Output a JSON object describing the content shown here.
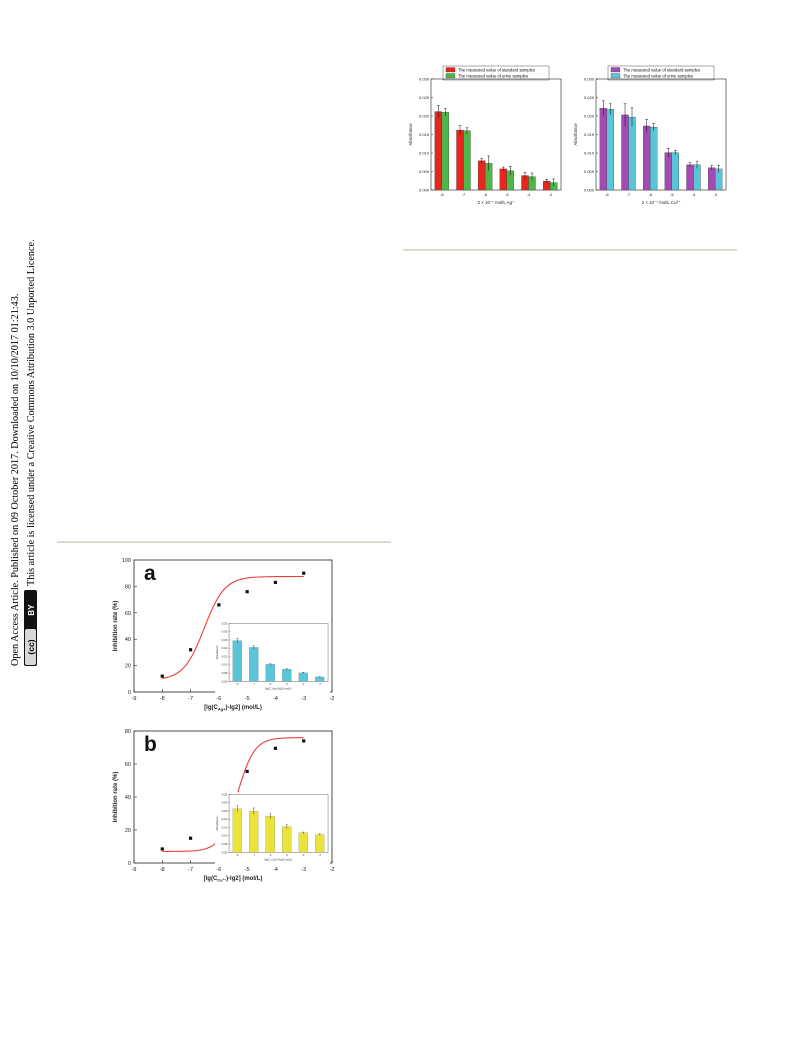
{
  "watermark": {
    "line1": "Open Access Article. Published on 09 October 2017. Downloaded on 10/10/2017 01:21:43.",
    "line2": "This article is licensed under a Creative Commons Attribution 3.0 Unported Licence.",
    "cc_badge": "cc BY"
  },
  "colors": {
    "red": "#e8261e",
    "green": "#4cb848",
    "purple": "#a54ab4",
    "cyan": "#5ac4d8",
    "yellow": "#eae33a",
    "curve": "#e8403a",
    "rule": "#dcdccc"
  },
  "chart_data": [
    {
      "id": "top-left",
      "type": "bar",
      "legend": [
        "The measured value of standard samples",
        "The measured value of urine samples"
      ],
      "legend_position": "top",
      "categories": [
        "-8",
        "-7",
        "-6",
        "-5",
        "-4",
        "-3"
      ],
      "series": [
        {
          "name": "The measured value of standard samples",
          "color": "red",
          "values": [
            0.0212,
            0.0162,
            0.0079,
            0.0057,
            0.0039,
            0.0024
          ],
          "err": [
            0.0017,
            0.0012,
            0.0006,
            0.0005,
            0.0009,
            0.0005
          ]
        },
        {
          "name": "The measured value of urine samples",
          "color": "green",
          "values": [
            0.021,
            0.016,
            0.0072,
            0.0052,
            0.0036,
            0.002
          ],
          "err": [
            0.001,
            0.0008,
            0.002,
            0.0012,
            0.001,
            0.001
          ]
        }
      ],
      "ylim": [
        0,
        0.03
      ],
      "yticks": [
        "0.000",
        "0.005",
        "0.010",
        "0.015",
        "0.020",
        "0.025",
        "0.030"
      ],
      "ylabel": "Absorbance",
      "xlabel": "2 × 10⁻⁷ mol/L Ag⁺"
    },
    {
      "id": "top-right",
      "type": "bar",
      "legend": [
        "The measured value of standard samples",
        "The measured value of urine samples"
      ],
      "legend_position": "top",
      "categories": [
        "-8",
        "-7",
        "-6",
        "-5",
        "-4",
        "-3"
      ],
      "series": [
        {
          "name": "The measured value of standard samples",
          "color": "purple",
          "values": [
            0.0221,
            0.0203,
            0.0173,
            0.0101,
            0.0068,
            0.006
          ],
          "err": [
            0.002,
            0.003,
            0.0018,
            0.0012,
            0.0006,
            0.0006
          ]
        },
        {
          "name": "The measured value of urine samples",
          "color": "cyan",
          "values": [
            0.0218,
            0.0197,
            0.017,
            0.0101,
            0.0068,
            0.0057
          ],
          "err": [
            0.0015,
            0.0025,
            0.001,
            0.0006,
            0.001,
            0.001
          ]
        }
      ],
      "ylim": [
        0,
        0.03
      ],
      "yticks": [
        "0.000",
        "0.005",
        "0.010",
        "0.015",
        "0.020",
        "0.025",
        "0.030"
      ],
      "ylabel": "Absorbance",
      "xlabel": "2 × 10⁻⁷ mol/L Cu²⁺"
    },
    {
      "id": "a",
      "panel_label": "a",
      "type": "scatter",
      "x": [
        -8,
        -7,
        -6,
        -5,
        -4,
        -3
      ],
      "y": [
        12,
        32,
        66,
        76,
        83,
        90
      ],
      "fit_curve": {
        "type": "sigmoid",
        "color": "curve",
        "bottom": 9,
        "top": 87.5,
        "x50": -6.52,
        "slope": 1.2
      },
      "xlim": [
        -9,
        -2
      ],
      "ylim": [
        0,
        100
      ],
      "xticks": [
        "-9",
        "-8",
        "-7",
        "-6",
        "-5",
        "-4",
        "-3",
        "-2"
      ],
      "yticks": [
        "0",
        "20",
        "40",
        "60",
        "80",
        "100"
      ],
      "ylabel": "Inhibition rate (%)",
      "xlabel": "[lg(C",
      "xlabel_sub": "Ag+",
      "xlabel_tail": ")-lg2] (mol/L)",
      "inset": {
        "type": "bar",
        "color": "cyan",
        "values": [
          0.0246,
          0.0205,
          0.0103,
          0.0074,
          0.0052,
          0.0027
        ],
        "err": [
          0.0012,
          0.001,
          0.0005,
          0.0003,
          0.0003,
          0.0003
        ],
        "ylim": [
          0,
          0.035
        ],
        "yticks": [
          "0.000",
          "0.005",
          "0.010",
          "0.015",
          "0.020",
          "0.025",
          "0.030",
          "0.035"
        ],
        "categories": [
          "-8",
          "-7",
          "-6",
          "-5",
          "-4",
          "-3"
        ],
        "ylabel": "Absorbance",
        "xlabel": "[lg(C_Ag+)-lg2] (mol/L)"
      }
    },
    {
      "id": "b",
      "panel_label": "b",
      "type": "scatter",
      "x": [
        -8,
        -7,
        -6,
        -5,
        -4,
        -3
      ],
      "y": [
        8.5,
        15,
        28,
        55.5,
        69.5,
        74
      ],
      "fit_curve": {
        "type": "sigmoid",
        "color": "curve",
        "bottom": 7,
        "top": 76,
        "x50": -5.35,
        "slope": 1.45
      },
      "xlim": [
        -9,
        -2
      ],
      "ylim": [
        0,
        80
      ],
      "xticks": [
        "-9",
        "-8",
        "-7",
        "-6",
        "-5",
        "-4",
        "-3",
        "-2"
      ],
      "yticks": [
        "0",
        "20",
        "40",
        "60",
        "80"
      ],
      "ylabel": "Inhibition rate (%)",
      "xlabel": "[lg(C",
      "xlabel_sub": "Cu²⁺",
      "xlabel_tail": ")-lg2] (mol/L)",
      "inset": {
        "type": "bar",
        "color": "yellow",
        "values": [
          0.0263,
          0.0248,
          0.0218,
          0.0155,
          0.0118,
          0.0108
        ],
        "err": [
          0.0018,
          0.002,
          0.0015,
          0.0012,
          0.0005,
          0.0004
        ],
        "ylim": [
          0,
          0.035
        ],
        "yticks": [
          "0.000",
          "0.005",
          "0.010",
          "0.015",
          "0.020",
          "0.025",
          "0.030",
          "0.035"
        ],
        "categories": [
          "-8",
          "-7",
          "-6",
          "-5",
          "-4",
          "-3"
        ],
        "ylabel": "Absorbance",
        "xlabel": "[lg(C_Cu2+)-lg2] (mol/L)"
      }
    }
  ]
}
